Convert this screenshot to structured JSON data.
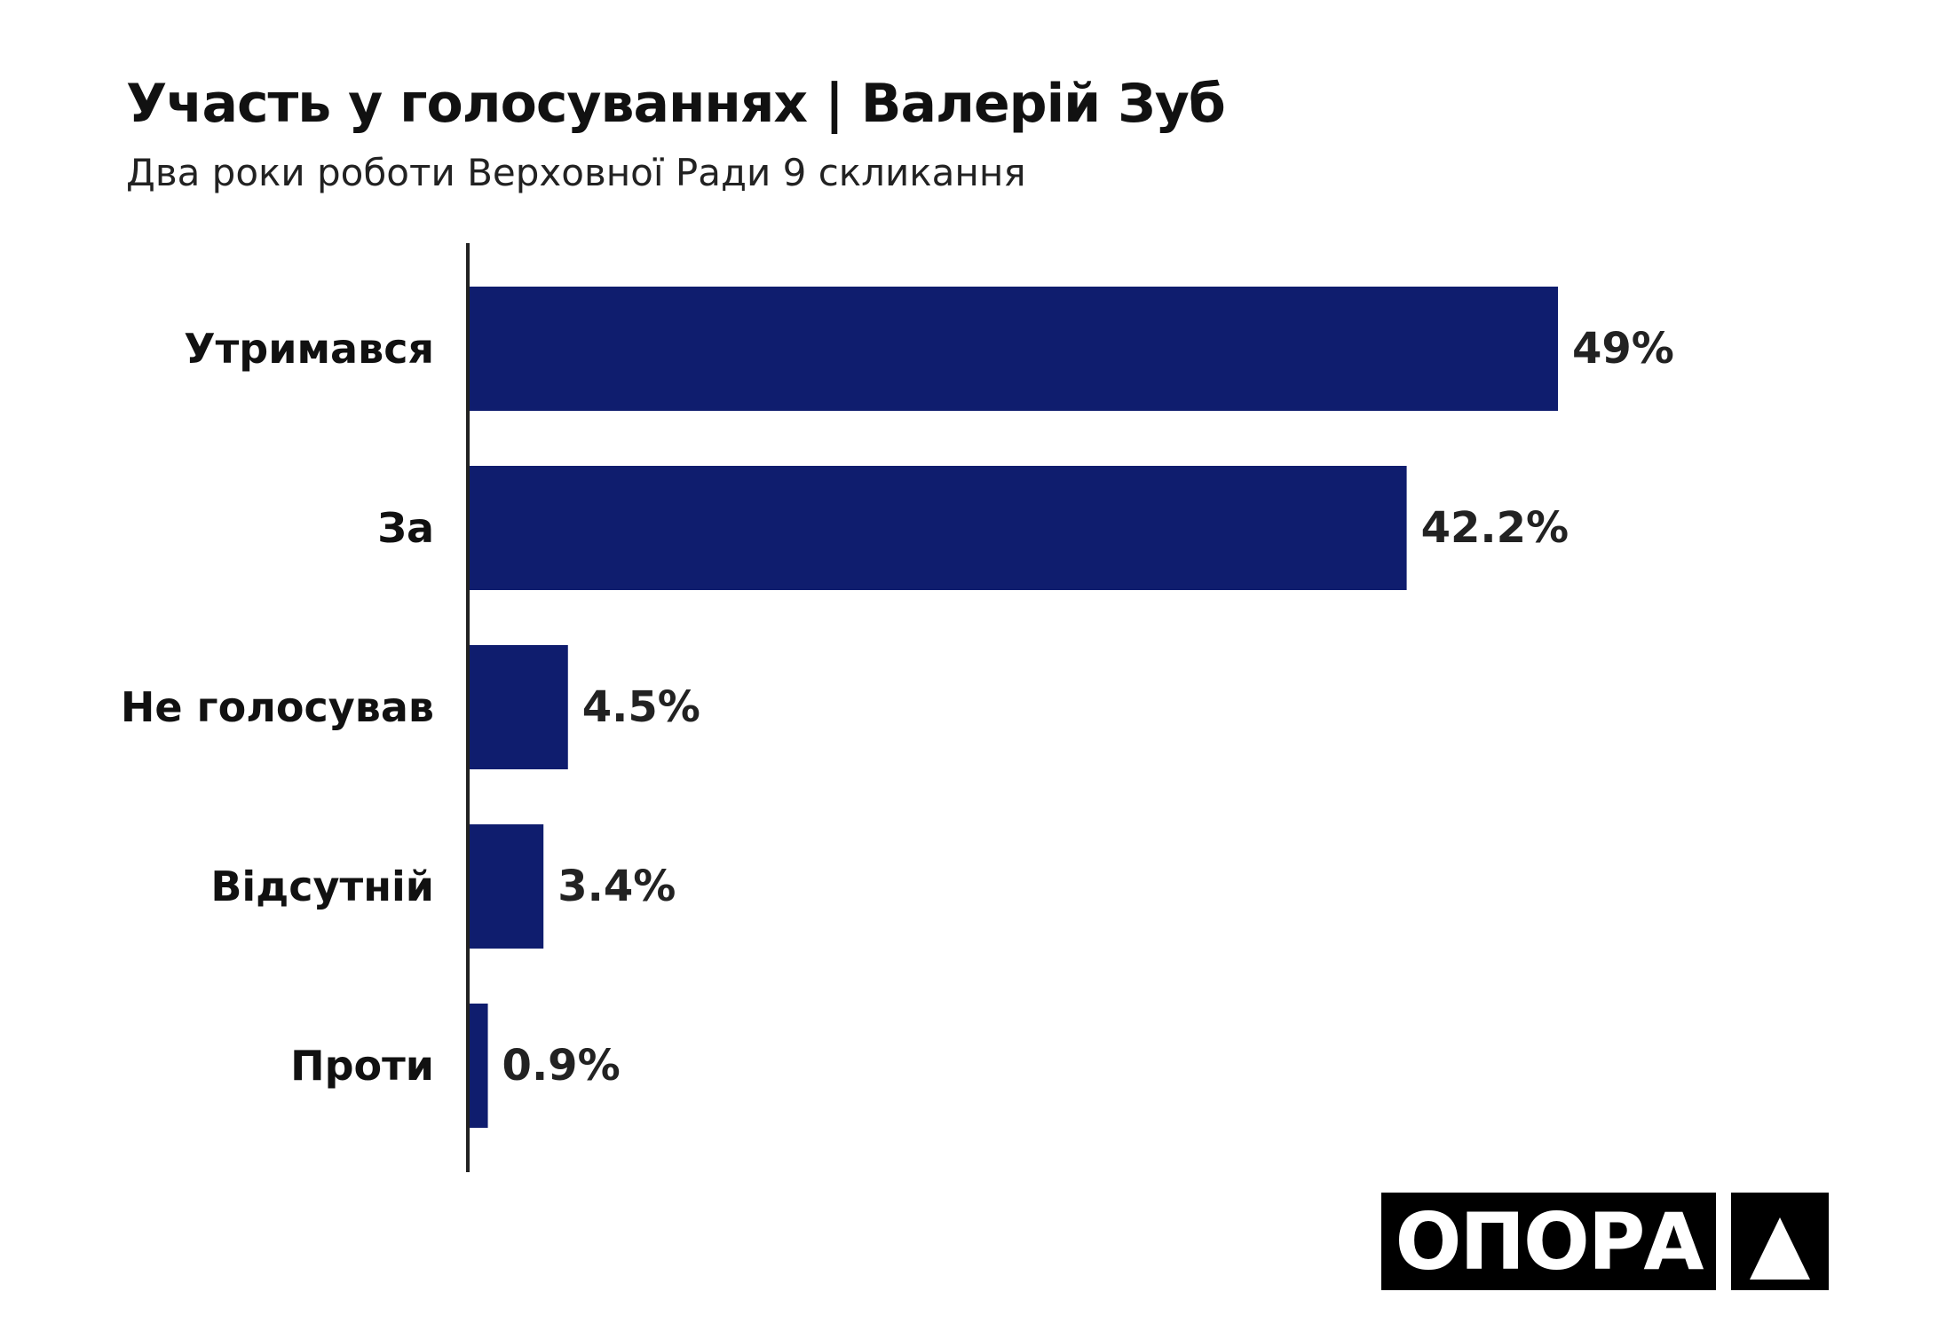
{
  "chart_data": {
    "type": "bar",
    "orientation": "horizontal",
    "title": "Участь у голосуваннях | Валерій Зуб",
    "subtitle": "Два роки роботи Верховної Ради 9 скликання",
    "categories": [
      "Утримався",
      "За",
      "Не голосував",
      "Відсутній",
      "Проти"
    ],
    "values": [
      49,
      42.2,
      4.5,
      3.4,
      0.9
    ],
    "data_labels": [
      "49%",
      "42.2%",
      "4.5%",
      "3.4%",
      "0.9%"
    ],
    "unit": "%",
    "xlim": [
      0,
      49
    ],
    "grid": false,
    "bar_color": "#0f1d6e",
    "axis_color": "#222222"
  },
  "logo": {
    "text": "ОПОРА",
    "icon": "triangle-icon"
  }
}
